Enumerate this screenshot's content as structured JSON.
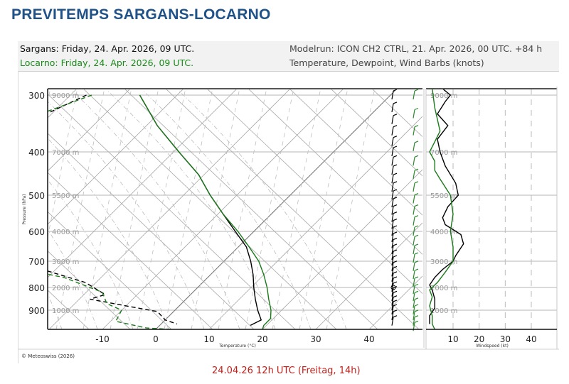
{
  "header": {
    "title": "PREVITEMPS SARGANS-LOCARNO"
  },
  "info": {
    "station1": "Sargans: Friday, 24. Apr. 2026, 09 UTC.",
    "station2": "Locarno: Friday, 24. Apr. 2026, 09 UTC.",
    "modelrun": "Modelrun: ICON CH2 CTRL, 21. Apr. 2026, 00 UTC. +84 h",
    "variables": "Temperature, Dewpoint, Wind Barbs (knots)"
  },
  "colors": {
    "title": "#1f5289",
    "station1": "#111111",
    "station2": "#1a8a1a",
    "grid": "#b0b0b0",
    "subtitle": "#c0201b"
  },
  "footer": {
    "credit": "© Meteoswiss (2026)",
    "valid_time": "24.04.26 12h UTC (Freitag, 14h)"
  },
  "chart_data": [
    {
      "type": "line",
      "title": "Skew-T log-P diagram",
      "xlabel": "Temperature (°C)",
      "ylabel": "Pressure (hPa)",
      "x_ticks": [
        -10,
        0,
        10,
        20,
        30,
        40
      ],
      "y_ticks": [
        300,
        400,
        500,
        600,
        700,
        800,
        900
      ],
      "height_labels": [
        {
          "p": 300,
          "label": "9000 m"
        },
        {
          "p": 400,
          "label": "7000 m"
        },
        {
          "p": 500,
          "label": "5500 m"
        },
        {
          "p": 600,
          "label": "4000 m"
        },
        {
          "p": 700,
          "label": "3000 m"
        },
        {
          "p": 800,
          "label": "2000 m"
        },
        {
          "p": 900,
          "label": "1000 m"
        }
      ],
      "xlim": [
        -20,
        47
      ],
      "ylim": [
        970,
        290
      ],
      "grid": true,
      "series": [
        {
          "name": "Sargans Temperature",
          "color": "#000000",
          "style": "solid",
          "points": [
            [
              300,
              -47
            ],
            [
              350,
              -38
            ],
            [
              400,
              -29
            ],
            [
              450,
              -21
            ],
            [
              500,
              -15
            ],
            [
              550,
              -9
            ],
            [
              600,
              -3.5
            ],
            [
              650,
              1.5
            ],
            [
              700,
              5
            ],
            [
              750,
              8
            ],
            [
              800,
              10.5
            ],
            [
              850,
              13
            ],
            [
              900,
              15.5
            ],
            [
              935,
              18
            ],
            [
              955,
              17
            ]
          ]
        },
        {
          "name": "Locarno Temperature",
          "color": "#1a7a1a",
          "style": "solid",
          "points": [
            [
              300,
              -47
            ],
            [
              350,
              -38
            ],
            [
              400,
              -29
            ],
            [
              450,
              -21
            ],
            [
              500,
              -15
            ],
            [
              550,
              -9
            ],
            [
              600,
              -3
            ],
            [
              650,
              2
            ],
            [
              700,
              6.5
            ],
            [
              750,
              10
            ],
            [
              800,
              13
            ],
            [
              850,
              15.5
            ],
            [
              900,
              18
            ],
            [
              930,
              19.5
            ],
            [
              955,
              19.5
            ],
            [
              970,
              20
            ]
          ]
        },
        {
          "name": "Sargans Dewpoint",
          "color": "#000000",
          "style": "dashed",
          "points": [
            [
              300,
              -57
            ],
            [
              330,
              -61
            ],
            [
              370,
              -59
            ],
            [
              400,
              -56
            ],
            [
              440,
              -56
            ],
            [
              480,
              -62
            ],
            [
              500,
              -63
            ],
            [
              530,
              -53
            ],
            [
              560,
              -49
            ],
            [
              600,
              -63
            ],
            [
              780,
              -22
            ],
            [
              830,
              -16
            ],
            [
              850,
              -18
            ],
            [
              880,
              -10
            ],
            [
              905,
              -3
            ],
            [
              935,
              0
            ],
            [
              950,
              3
            ]
          ]
        },
        {
          "name": "Locarno Dewpoint",
          "color": "#1a7a1a",
          "style": "dashed",
          "points": [
            [
              300,
              -56
            ],
            [
              340,
              -64
            ],
            [
              380,
              -63
            ],
            [
              420,
              -58
            ],
            [
              460,
              -58
            ],
            [
              500,
              -62
            ],
            [
              540,
              -54
            ],
            [
              570,
              -50
            ],
            [
              620,
              -58
            ],
            [
              650,
              -62
            ],
            [
              760,
              -27
            ],
            [
              820,
              -17
            ],
            [
              870,
              -14
            ],
            [
              900,
              -10
            ],
            [
              940,
              -9
            ],
            [
              965,
              -2
            ],
            [
              970,
              3
            ]
          ]
        }
      ],
      "wind_barbs": {
        "sargans_x": 553,
        "locarno_x": 583,
        "sargans_levels": [
          300,
          320,
          340,
          360,
          380,
          400,
          420,
          440,
          460,
          480,
          500,
          520,
          540,
          560,
          580,
          600,
          620,
          640,
          660,
          680,
          700,
          720,
          740,
          760,
          780,
          800,
          820,
          840,
          860,
          880,
          900,
          920,
          940
        ],
        "locarno_levels": [
          300,
          330,
          360,
          390,
          420,
          450,
          480,
          510,
          540,
          570,
          600,
          630,
          660,
          690,
          720,
          750,
          780,
          810,
          840,
          870,
          900,
          920,
          940,
          960
        ]
      }
    },
    {
      "type": "line",
      "title": "Wind speed profile",
      "xlabel": "Windspeed (kt)",
      "x_ticks": [
        10,
        20,
        30,
        40
      ],
      "xlim": [
        0,
        50
      ],
      "ylim": [
        970,
        290
      ],
      "height_labels": [
        "9000 m",
        "7000 m",
        "5500 m",
        "4000 m",
        "3000 m",
        "2000 m",
        "1000 m"
      ],
      "series": [
        {
          "name": "Sargans windspeed",
          "color": "#000000",
          "points": [
            [
              290,
              6
            ],
            [
              300,
              9
            ],
            [
              310,
              7
            ],
            [
              330,
              4
            ],
            [
              350,
              8
            ],
            [
              375,
              4
            ],
            [
              400,
              5
            ],
            [
              430,
              7
            ],
            [
              470,
              11
            ],
            [
              500,
              12
            ],
            [
              530,
              8
            ],
            [
              560,
              6
            ],
            [
              580,
              7
            ],
            [
              610,
              13
            ],
            [
              640,
              14
            ],
            [
              680,
              11
            ],
            [
              700,
              10
            ],
            [
              730,
              6
            ],
            [
              760,
              3
            ],
            [
              790,
              1
            ],
            [
              810,
              2
            ],
            [
              850,
              3
            ],
            [
              890,
              3
            ],
            [
              920,
              1
            ],
            [
              950,
              1
            ]
          ]
        },
        {
          "name": "Locarno windspeed",
          "color": "#1a7a1a",
          "points": [
            [
              290,
              2
            ],
            [
              320,
              3
            ],
            [
              360,
              5
            ],
            [
              380,
              3
            ],
            [
              400,
              1
            ],
            [
              420,
              3
            ],
            [
              440,
              3
            ],
            [
              460,
              5
            ],
            [
              500,
              9
            ],
            [
              550,
              10
            ],
            [
              600,
              9
            ],
            [
              650,
              10
            ],
            [
              700,
              10
            ],
            [
              740,
              7
            ],
            [
              780,
              4
            ],
            [
              810,
              1
            ],
            [
              840,
              2
            ],
            [
              880,
              1
            ],
            [
              920,
              2
            ],
            [
              950,
              2
            ],
            [
              970,
              3
            ]
          ]
        }
      ]
    }
  ]
}
